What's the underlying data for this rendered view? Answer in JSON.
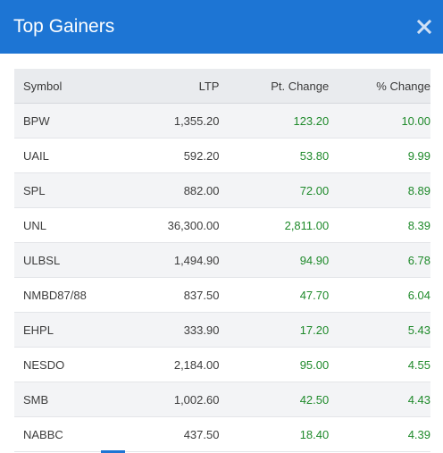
{
  "modal": {
    "title": "Top Gainers"
  },
  "colors": {
    "header_bg": "#1d75d4",
    "positive": "#1f8a2b",
    "table_header_bg": "#e9ebee"
  },
  "icons": {
    "close": "close-icon"
  },
  "table": {
    "columns": [
      "Symbol",
      "LTP",
      "Pt. Change",
      "% Change"
    ],
    "rows": [
      {
        "symbol": "BPW",
        "ltp": "1,355.20",
        "pt_change": "123.20",
        "pct_change": "10.00"
      },
      {
        "symbol": "UAIL",
        "ltp": "592.20",
        "pt_change": "53.80",
        "pct_change": "9.99"
      },
      {
        "symbol": "SPL",
        "ltp": "882.00",
        "pt_change": "72.00",
        "pct_change": "8.89"
      },
      {
        "symbol": "UNL",
        "ltp": "36,300.00",
        "pt_change": "2,811.00",
        "pct_change": "8.39"
      },
      {
        "symbol": "ULBSL",
        "ltp": "1,494.90",
        "pt_change": "94.90",
        "pct_change": "6.78"
      },
      {
        "symbol": "NMBD87/88",
        "ltp": "837.50",
        "pt_change": "47.70",
        "pct_change": "6.04"
      },
      {
        "symbol": "EHPL",
        "ltp": "333.90",
        "pt_change": "17.20",
        "pct_change": "5.43"
      },
      {
        "symbol": "NESDO",
        "ltp": "2,184.00",
        "pt_change": "95.00",
        "pct_change": "4.55"
      },
      {
        "symbol": "SMB",
        "ltp": "1,002.60",
        "pt_change": "42.50",
        "pct_change": "4.43"
      },
      {
        "symbol": "NABBC",
        "ltp": "437.50",
        "pt_change": "18.40",
        "pct_change": "4.39"
      }
    ]
  }
}
